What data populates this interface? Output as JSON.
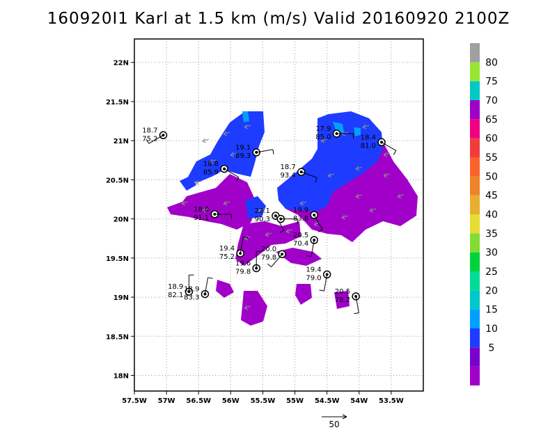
{
  "title": "160920I1 Karl at 1.5 km (m/s) Valid 20160920 2100Z",
  "map": {
    "lon_range": [
      -57.5,
      -53.0
    ],
    "lat_range": [
      17.8,
      22.3
    ],
    "x_ticks": [
      {
        "value": -57.5,
        "label": "57.5W"
      },
      {
        "value": -57.0,
        "label": "57W"
      },
      {
        "value": -56.5,
        "label": "56.5W"
      },
      {
        "value": -56.0,
        "label": "56W"
      },
      {
        "value": -55.5,
        "label": "55.5W"
      },
      {
        "value": -55.0,
        "label": "55W"
      },
      {
        "value": -54.5,
        "label": "54.5W"
      },
      {
        "value": -54.0,
        "label": "54W"
      },
      {
        "value": -53.5,
        "label": "53.5W"
      }
    ],
    "y_ticks": [
      {
        "value": 18.0,
        "label": "18N"
      },
      {
        "value": 18.5,
        "label": "18.5N"
      },
      {
        "value": 19.0,
        "label": "19N"
      },
      {
        "value": 19.5,
        "label": "19.5N"
      },
      {
        "value": 20.0,
        "label": "20N"
      },
      {
        "value": 20.5,
        "label": "20.5N"
      },
      {
        "value": 21.0,
        "label": "21N"
      },
      {
        "value": 21.5,
        "label": "21.5N"
      },
      {
        "value": 22.0,
        "label": "22N"
      }
    ],
    "grid": "dotted"
  },
  "colorbar": {
    "levels": [
      {
        "label": "",
        "color": "#a000c8"
      },
      {
        "label": "5",
        "color": "#7a00d0"
      },
      {
        "label": "10",
        "color": "#1e3cff"
      },
      {
        "label": "15",
        "color": "#00a0ff"
      },
      {
        "label": "20",
        "color": "#00c8c8"
      },
      {
        "label": "25",
        "color": "#00dc96"
      },
      {
        "label": "30",
        "color": "#00d23c"
      },
      {
        "label": "35",
        "color": "#82dc32"
      },
      {
        "label": "40",
        "color": "#e6dc32"
      },
      {
        "label": "45",
        "color": "#e6af2d"
      },
      {
        "label": "50",
        "color": "#f08228"
      },
      {
        "label": "55",
        "color": "#fa6428"
      },
      {
        "label": "60",
        "color": "#f03c3c"
      },
      {
        "label": "65",
        "color": "#f00082"
      },
      {
        "label": "70",
        "color": "#a000c8"
      },
      {
        "label": "75",
        "color": "#00c8c8"
      },
      {
        "label": "80",
        "color": "#96e632"
      },
      {
        "label": "",
        "color": "#a0a0a0"
      }
    ]
  },
  "wind_colors": {
    "low": "#a000c8",
    "mid": "#1e3cff"
  },
  "observations": [
    {
      "lon": -57.05,
      "lat": 21.07,
      "speed": "18.7",
      "pressure": "75.2",
      "barb_dir": 240
    },
    {
      "lon": -56.1,
      "lat": 20.64,
      "speed": "18.8",
      "pressure": "85.9",
      "barb_dir": 120
    },
    {
      "lon": -56.25,
      "lat": 20.06,
      "speed": "18.0",
      "pressure": "91.1",
      "barb_dir": 90
    },
    {
      "lon": -55.6,
      "lat": 20.85,
      "speed": "19.1",
      "pressure": "89.3",
      "barb_dir": 80
    },
    {
      "lon": -54.9,
      "lat": 20.6,
      "speed": "18.7",
      "pressure": "93.4",
      "barb_dir": 110
    },
    {
      "lon": -54.35,
      "lat": 21.09,
      "speed": "17.9",
      "pressure": "85.0",
      "barb_dir": 90
    },
    {
      "lon": -53.65,
      "lat": 20.98,
      "speed": "18.4",
      "pressure": "81.0",
      "barb_dir": 120
    },
    {
      "lon": -55.3,
      "lat": 20.04,
      "speed": "22.1",
      "pressure": "90.3",
      "barb_dir": 150
    },
    {
      "lon": -55.22,
      "lat": 20.0,
      "speed": "",
      "pressure": "",
      "barb_dir": 90
    },
    {
      "lon": -54.7,
      "lat": 20.05,
      "speed": "19.9",
      "pressure": "83.8",
      "barb_dir": 150
    },
    {
      "lon": -54.7,
      "lat": 19.73,
      "speed": "20.5",
      "pressure": "70.4",
      "barb_dir": 190
    },
    {
      "lon": -55.85,
      "lat": 19.56,
      "speed": "19.4",
      "pressure": "75.2",
      "barb_dir": 10
    },
    {
      "lon": -55.2,
      "lat": 19.55,
      "speed": "20.0",
      "pressure": "79.8",
      "barb_dir": 220
    },
    {
      "lon": -55.6,
      "lat": 19.37,
      "speed": "19.6",
      "pressure": "79.8",
      "barb_dir": 0
    },
    {
      "lon": -54.5,
      "lat": 19.29,
      "speed": "19.4",
      "pressure": "79.0",
      "barb_dir": 190
    },
    {
      "lon": -54.05,
      "lat": 19.01,
      "speed": "20.5",
      "pressure": "78.2",
      "barb_dir": 170
    },
    {
      "lon": -56.65,
      "lat": 19.07,
      "speed": "18.9",
      "pressure": "82.1",
      "barb_dir": 0
    },
    {
      "lon": -56.4,
      "lat": 19.04,
      "speed": "18.9",
      "pressure": "83.3",
      "barb_dir": 10
    }
  ],
  "reference_vector": {
    "label": "50"
  }
}
